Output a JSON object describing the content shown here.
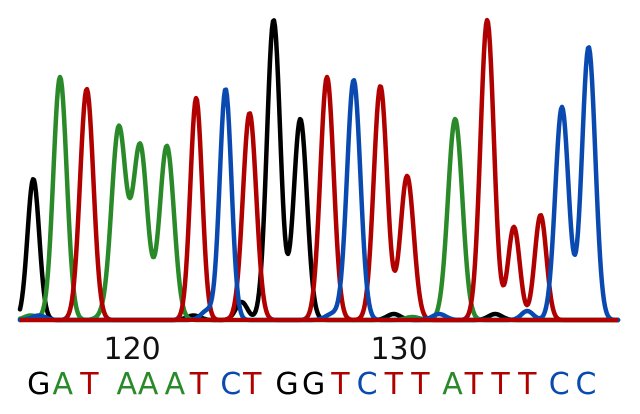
{
  "chart_data": {
    "type": "line",
    "title": "",
    "xlabel": "",
    "ylabel": "",
    "xlim": [
      115.8,
      138.2
    ],
    "ylim": [
      0,
      1
    ],
    "grid": false,
    "legend": "none",
    "colors": {
      "A": "#2a8a2a",
      "C": "#0a4ab0",
      "G": "#000000",
      "T": "#b00000"
    },
    "x_ticks": [
      120,
      130
    ],
    "x_tick_labels": [
      "120",
      "130"
    ],
    "bases": [
      {
        "pos": 116.5,
        "base": "G"
      },
      {
        "pos": 117.4,
        "base": "A"
      },
      {
        "pos": 118.4,
        "base": "T"
      },
      {
        "pos": 119.8,
        "base": "A"
      },
      {
        "pos": 120.6,
        "base": "A"
      },
      {
        "pos": 121.6,
        "base": "A"
      },
      {
        "pos": 122.5,
        "base": "T"
      },
      {
        "pos": 123.7,
        "base": "C"
      },
      {
        "pos": 124.5,
        "base": "T"
      },
      {
        "pos": 125.8,
        "base": "G"
      },
      {
        "pos": 126.8,
        "base": "G"
      },
      {
        "pos": 127.8,
        "base": "T"
      },
      {
        "pos": 128.8,
        "base": "C"
      },
      {
        "pos": 129.8,
        "base": "T"
      },
      {
        "pos": 130.8,
        "base": "T"
      },
      {
        "pos": 132.0,
        "base": "A"
      },
      {
        "pos": 132.8,
        "base": "T"
      },
      {
        "pos": 133.8,
        "base": "T"
      },
      {
        "pos": 134.8,
        "base": "T"
      },
      {
        "pos": 136.0,
        "base": "C"
      },
      {
        "pos": 137.0,
        "base": "C"
      }
    ],
    "series": [
      {
        "name": "G",
        "color": "#000000",
        "peaks": [
          {
            "x": 116.3,
            "h": 0.47,
            "w": 0.22
          },
          {
            "x": 122.3,
            "h": 0.015,
            "w": 0.25
          },
          {
            "x": 124.1,
            "h": 0.06,
            "w": 0.22
          },
          {
            "x": 125.3,
            "h": 1.0,
            "w": 0.25
          },
          {
            "x": 126.3,
            "h": 0.67,
            "w": 0.25
          },
          {
            "x": 129.8,
            "h": 0.02,
            "w": 0.25
          },
          {
            "x": 133.6,
            "h": 0.02,
            "w": 0.25
          }
        ]
      },
      {
        "name": "A",
        "color": "#2a8a2a",
        "peaks": [
          {
            "x": 116.2,
            "h": 0.015,
            "w": 0.25
          },
          {
            "x": 117.3,
            "h": 0.81,
            "w": 0.25
          },
          {
            "x": 118.9,
            "h": 0.01,
            "w": 0.25
          },
          {
            "x": 119.5,
            "h": 0.64,
            "w": 0.27
          },
          {
            "x": 120.3,
            "h": 0.58,
            "w": 0.27
          },
          {
            "x": 121.3,
            "h": 0.58,
            "w": 0.27
          },
          {
            "x": 130.5,
            "h": 0.01,
            "w": 0.25
          },
          {
            "x": 132.1,
            "h": 0.67,
            "w": 0.27
          }
        ]
      },
      {
        "name": "T",
        "color": "#b00000",
        "peaks": [
          {
            "x": 118.3,
            "h": 0.77,
            "w": 0.25
          },
          {
            "x": 122.4,
            "h": 0.74,
            "w": 0.22
          },
          {
            "x": 124.4,
            "h": 0.69,
            "w": 0.25
          },
          {
            "x": 127.3,
            "h": 0.81,
            "w": 0.25
          },
          {
            "x": 129.3,
            "h": 0.78,
            "w": 0.25
          },
          {
            "x": 130.3,
            "h": 0.48,
            "w": 0.25
          },
          {
            "x": 133.3,
            "h": 1.0,
            "w": 0.25
          },
          {
            "x": 134.3,
            "h": 0.31,
            "w": 0.22
          },
          {
            "x": 135.3,
            "h": 0.35,
            "w": 0.22
          }
        ]
      },
      {
        "name": "C",
        "color": "#0a4ab0",
        "peaks": [
          {
            "x": 116.5,
            "h": 0.015,
            "w": 0.25
          },
          {
            "x": 122.8,
            "h": 0.03,
            "w": 0.22
          },
          {
            "x": 123.5,
            "h": 0.77,
            "w": 0.22
          },
          {
            "x": 127.5,
            "h": 0.02,
            "w": 0.25
          },
          {
            "x": 128.3,
            "h": 0.8,
            "w": 0.25
          },
          {
            "x": 131.5,
            "h": 0.02,
            "w": 0.25
          },
          {
            "x": 134.8,
            "h": 0.03,
            "w": 0.22
          },
          {
            "x": 136.1,
            "h": 0.71,
            "w": 0.25
          },
          {
            "x": 137.1,
            "h": 0.91,
            "w": 0.25
          }
        ]
      }
    ]
  }
}
